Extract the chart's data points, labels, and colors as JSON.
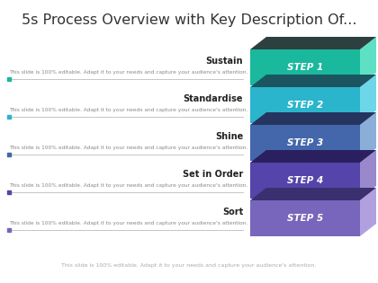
{
  "title": "5s Process Overview with Key Description Of...",
  "title_fontsize": 11.5,
  "steps": [
    {
      "label": "Sustain",
      "step": "STEP 1",
      "front_color": "#1ab89c",
      "side_color": "#159678",
      "top_color": "#2d4040",
      "right_light": "#5ee0c5",
      "dot_color": "#1ab89c"
    },
    {
      "label": "Standardise",
      "step": "STEP 2",
      "front_color": "#2ab5cc",
      "side_color": "#1e8ea0",
      "top_color": "#1a5560",
      "right_light": "#6dd6e8",
      "dot_color": "#2ab5cc"
    },
    {
      "label": "Shine",
      "step": "STEP 3",
      "front_color": "#4466aa",
      "side_color": "#304e88",
      "top_color": "#253560",
      "right_light": "#8aaed8",
      "dot_color": "#4466aa"
    },
    {
      "label": "Set in Order",
      "step": "STEP 4",
      "front_color": "#5544aa",
      "side_color": "#3d3088",
      "top_color": "#2a2060",
      "right_light": "#9988cc",
      "dot_color": "#5544aa"
    },
    {
      "label": "Sort",
      "step": "STEP 5",
      "front_color": "#7766bb",
      "side_color": "#5a50a0",
      "top_color": "#3a3070",
      "right_light": "#b0a0e0",
      "dot_color": "#7766bb"
    }
  ],
  "description": "This slide is 100% editable. Adapt it to your needs and capture your audience's attention.",
  "footer": "This slide is 100% editable. Adapt it to your needs and capture your audience's attention.",
  "bg_color": "#ffffff",
  "text_color": "#333333",
  "label_color": "#222222",
  "step_text_color": "#ffffff"
}
